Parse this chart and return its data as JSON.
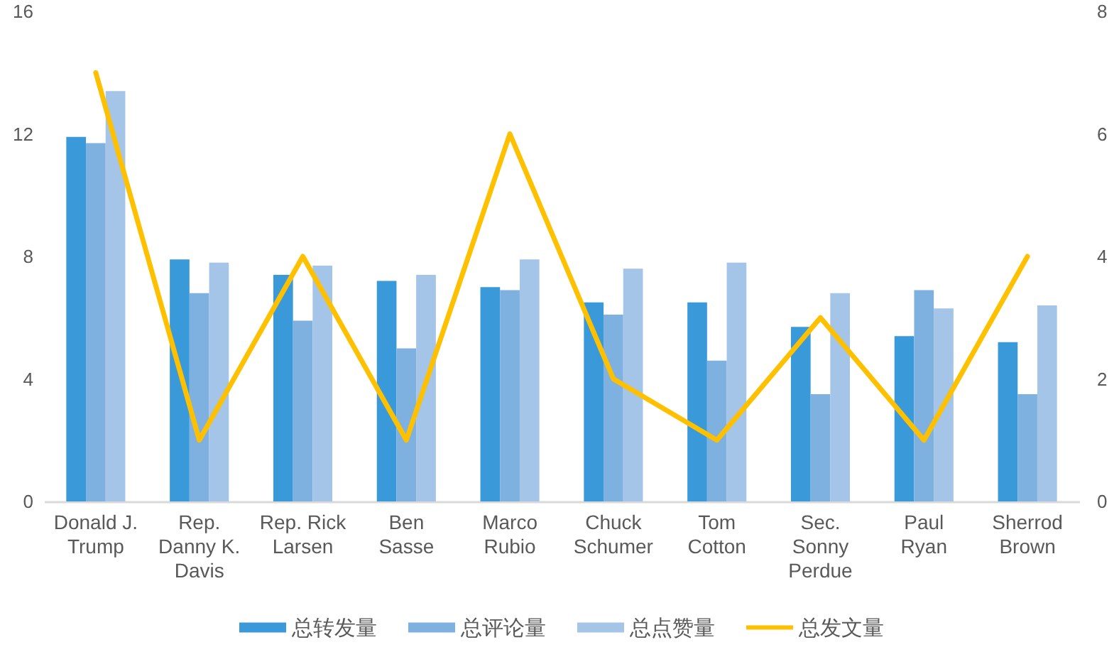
{
  "chart_data": {
    "type": "bar",
    "categories": [
      "Donald J. Trump",
      "Rep. Danny K. Davis",
      "Rep. Rick Larsen",
      "Ben Sasse",
      "Marco Rubio",
      "Chuck Schumer",
      "Tom Cotton",
      "Sec. Sonny Perdue",
      "Paul Ryan",
      "Sherrod Brown"
    ],
    "series": [
      {
        "name": "总转发量",
        "color": "#3a9ad9",
        "values": [
          11.9,
          7.9,
          7.4,
          7.2,
          7.0,
          6.5,
          6.5,
          5.7,
          5.4,
          5.2
        ]
      },
      {
        "name": "总评论量",
        "color": "#7fb1e0",
        "values": [
          11.7,
          6.8,
          5.9,
          5.0,
          6.9,
          6.1,
          4.6,
          3.5,
          6.9,
          3.5
        ]
      },
      {
        "name": "总点赞量",
        "color": "#a4c4e8",
        "values": [
          13.4,
          7.8,
          7.7,
          7.4,
          7.9,
          7.6,
          7.8,
          6.8,
          6.3,
          6.4
        ]
      },
      {
        "name": "总发文量",
        "type": "line",
        "axis": "y2",
        "color": "#ffc000",
        "values": [
          7,
          1,
          4,
          1,
          6,
          2,
          1,
          3,
          1,
          4
        ]
      }
    ],
    "ylim": [
      0,
      16
    ],
    "yticks": [
      0,
      4,
      8,
      12,
      16
    ],
    "y2lim": [
      0,
      8
    ],
    "y2ticks": [
      0,
      2,
      4,
      6,
      8
    ],
    "legend": "bottom"
  }
}
